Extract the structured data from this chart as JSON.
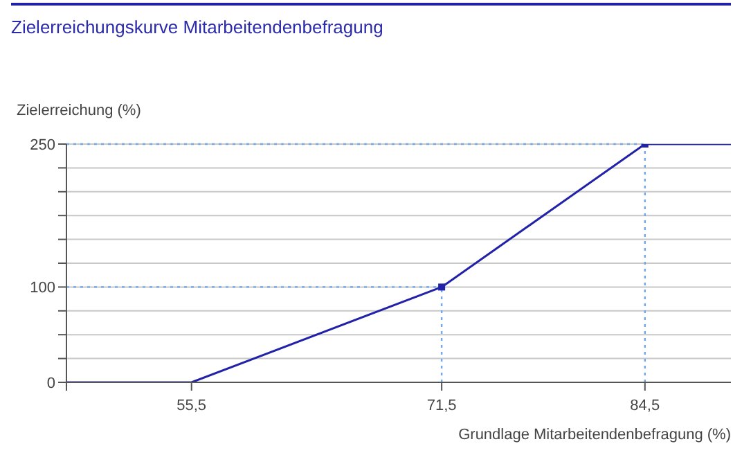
{
  "chart_data": {
    "type": "line",
    "title": "Zielerreichungskurve Mitarbeitendenbefragung",
    "xlabel": "Grundlage Mitarbeitendenbefragung (%)",
    "ylabel": "Zielerreichung (%)",
    "x": [
      47.5,
      55.5,
      71.5,
      84.5,
      90
    ],
    "series": [
      {
        "color": "#2222a8",
        "values": [
          0,
          0,
          100,
          250,
          250
        ],
        "marker": "none"
      },
      {
        "type": "scatter",
        "color": "#2222a8",
        "x": [
          71.5,
          84.5
        ],
        "values": [
          100,
          250
        ],
        "marker": "square"
      }
    ],
    "xlim": [
      47.5,
      90
    ],
    "xticks": [
      {
        "value": 47.5,
        "label": null
      },
      {
        "value": 55.5,
        "label": "55,5"
      },
      {
        "value": 71.5,
        "label": "71,5"
      },
      {
        "value": 84.5,
        "label": "84,5"
      }
    ],
    "ylim": [
      0,
      250
    ],
    "yticks": [
      0,
      {
        "value": 25,
        "label": null
      },
      {
        "value": 50,
        "label": null
      },
      {
        "value": 75,
        "label": null
      },
      100,
      {
        "value": 125,
        "label": null
      },
      {
        "value": 150,
        "label": null
      },
      {
        "value": 175,
        "label": null
      },
      {
        "value": 200,
        "label": null
      },
      {
        "value": 225,
        "label": null
      },
      250
    ],
    "grid": "y",
    "ref_lines": [
      {
        "axis": "y",
        "value": 100,
        "color": "#6fa8f0",
        "line_style": "dotted"
      },
      {
        "axis": "y",
        "value": 250,
        "color": "#6fa8f0",
        "line_style": "dotted"
      },
      {
        "axis": "x",
        "value": 71.5,
        "color": "#6fa8f0",
        "line_style": "dotted"
      },
      {
        "axis": "x",
        "value": 84.5,
        "color": "#6fa8f0",
        "line_style": "dotted"
      }
    ]
  }
}
